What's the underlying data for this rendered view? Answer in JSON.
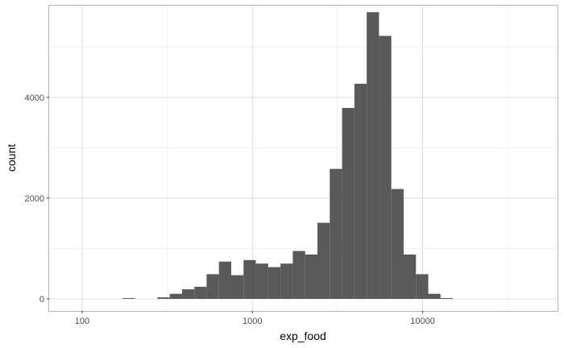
{
  "chart_data": {
    "type": "bar",
    "xlabel": "exp_food",
    "ylabel": "count",
    "x_scale": "log10",
    "xlim": [
      64,
      62000
    ],
    "ylim": [
      0,
      5820
    ],
    "x_ticks": [
      100,
      1000,
      10000
    ],
    "x_tick_labels": [
      "100",
      "1000",
      "10000"
    ],
    "y_ticks": [
      0,
      2000,
      4000
    ],
    "y_tick_labels": [
      "0",
      "2000",
      "4000"
    ],
    "grid": true,
    "bar_color": "#595959",
    "bins": [
      {
        "x0": 173,
        "x1": 204,
        "count": 15
      },
      {
        "x0": 277,
        "x1": 327,
        "count": 30
      },
      {
        "x0": 327,
        "x1": 386,
        "count": 100
      },
      {
        "x0": 386,
        "x1": 456,
        "count": 190
      },
      {
        "x0": 456,
        "x1": 538,
        "count": 240
      },
      {
        "x0": 538,
        "x1": 636,
        "count": 490
      },
      {
        "x0": 636,
        "x1": 751,
        "count": 740
      },
      {
        "x0": 751,
        "x1": 887,
        "count": 470
      },
      {
        "x0": 887,
        "x1": 1048,
        "count": 770
      },
      {
        "x0": 1048,
        "x1": 1238,
        "count": 700
      },
      {
        "x0": 1238,
        "x1": 1462,
        "count": 630
      },
      {
        "x0": 1462,
        "x1": 1727,
        "count": 700
      },
      {
        "x0": 1727,
        "x1": 2040,
        "count": 950
      },
      {
        "x0": 2040,
        "x1": 2410,
        "count": 880
      },
      {
        "x0": 2410,
        "x1": 2847,
        "count": 1510
      },
      {
        "x0": 2847,
        "x1": 3363,
        "count": 2580
      },
      {
        "x0": 3363,
        "x1": 3972,
        "count": 3790
      },
      {
        "x0": 3972,
        "x1": 4692,
        "count": 4270
      },
      {
        "x0": 4692,
        "x1": 5542,
        "count": 5690
      },
      {
        "x0": 5542,
        "x1": 6546,
        "count": 5220
      },
      {
        "x0": 6546,
        "x1": 7733,
        "count": 2180
      },
      {
        "x0": 7733,
        "x1": 9134,
        "count": 880
      },
      {
        "x0": 9134,
        "x1": 10790,
        "count": 490
      },
      {
        "x0": 10790,
        "x1": 12745,
        "count": 100
      },
      {
        "x0": 12745,
        "x1": 15055,
        "count": 15
      }
    ]
  }
}
